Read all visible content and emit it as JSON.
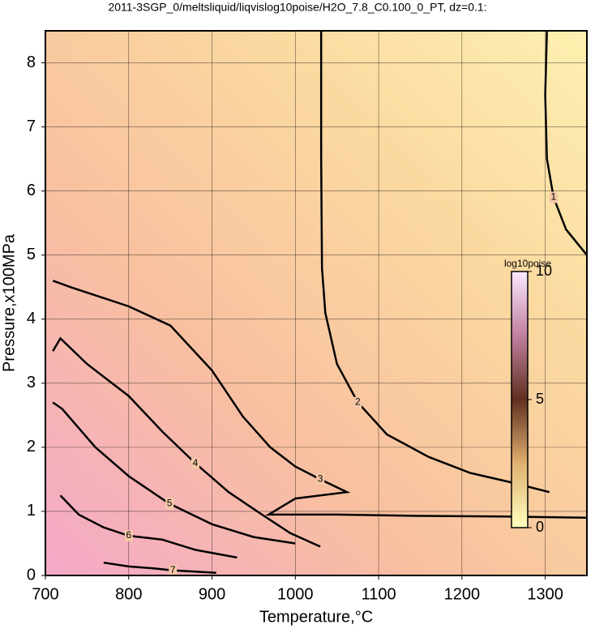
{
  "chart_data": {
    "type": "contour",
    "title": "2011-3SGP_0/meltsliquid/liqvislog10poise/H2O_7.8_C0.100_0_PT, dz=0.1:",
    "xlabel": "Temperature,°C",
    "ylabel": "Pressure,x100MPa",
    "xlim": [
      700,
      1350
    ],
    "ylim": [
      0,
      8.5
    ],
    "xticks": [
      700,
      800,
      900,
      1000,
      1100,
      1200,
      1300
    ],
    "yticks": [
      0,
      1,
      2,
      3,
      4,
      5,
      6,
      7,
      8
    ],
    "grid": true,
    "colorbar": {
      "label": "log10poise",
      "lim": [
        0,
        10
      ],
      "ticks": [
        0,
        5,
        10
      ]
    },
    "contours": [
      {
        "level": 1,
        "x": [
          1302,
          1300,
          1302,
          1310,
          1325,
          1350
        ],
        "y": [
          8.5,
          7.5,
          6.5,
          5.9,
          5.4,
          5.0
        ]
      },
      {
        "level": 2,
        "x": [
          1031,
          1031,
          1032,
          1036,
          1050,
          1075,
          1110,
          1160,
          1210,
          1260,
          1305
        ],
        "y": [
          8.5,
          6.5,
          4.8,
          4.1,
          3.3,
          2.7,
          2.2,
          1.85,
          1.6,
          1.45,
          1.3
        ]
      },
      {
        "level": 3,
        "x": [
          709,
          730,
          800,
          850,
          900,
          937,
          970,
          1000,
          1030,
          1062,
          1000,
          968,
          1050,
          1150,
          1250,
          1350
        ],
        "y": [
          4.6,
          4.5,
          4.2,
          3.9,
          3.2,
          2.48,
          2.0,
          1.7,
          1.5,
          1.3,
          1.2,
          0.95,
          0.95,
          0.93,
          0.92,
          0.9
        ]
      },
      {
        "level": 4,
        "x": [
          709,
          718,
          750,
          800,
          840,
          880,
          920,
          960,
          994,
          1030
        ],
        "y": [
          3.5,
          3.7,
          3.3,
          2.8,
          2.25,
          1.75,
          1.3,
          0.95,
          0.66,
          0.45
        ]
      },
      {
        "level": 5,
        "x": [
          709,
          720,
          760,
          800,
          849,
          900,
          950,
          1000
        ],
        "y": [
          2.7,
          2.6,
          2.0,
          1.55,
          1.12,
          0.8,
          0.6,
          0.5
        ]
      },
      {
        "level": 6,
        "x": [
          718,
          740,
          770,
          800,
          840,
          880,
          930
        ],
        "y": [
          1.25,
          0.95,
          0.75,
          0.62,
          0.56,
          0.4,
          0.28
        ]
      },
      {
        "level": 7,
        "x": [
          770,
          800,
          830,
          853,
          880,
          905
        ],
        "y": [
          0.2,
          0.14,
          0.11,
          0.08,
          0.06,
          0.04
        ]
      }
    ]
  }
}
